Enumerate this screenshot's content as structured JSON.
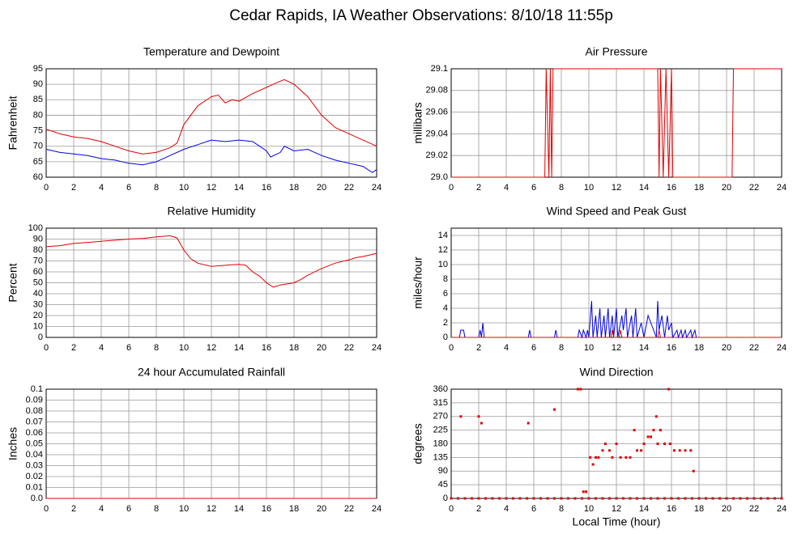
{
  "title": "Cedar Rapids, IA Weather Observations: 8/10/18 11:55p",
  "chart_data": [
    {
      "type": "line",
      "title": "Temperature and Dewpoint",
      "ylabel": "Fahrenheit",
      "xlim": [
        0,
        24
      ],
      "xticks": [
        0,
        2,
        4,
        6,
        8,
        10,
        12,
        14,
        16,
        18,
        20,
        22,
        24
      ],
      "ylim": [
        60,
        95
      ],
      "yticks": [
        60,
        65,
        70,
        75,
        80,
        85,
        90,
        95
      ],
      "grid": true,
      "series": [
        {
          "color": "#e00000",
          "x": [
            0,
            1,
            2,
            3,
            4,
            5,
            6,
            7,
            8,
            9,
            9.5,
            10,
            11,
            12,
            12.5,
            13,
            13.5,
            14,
            15,
            16,
            16.5,
            17,
            17.3,
            18,
            19,
            20,
            21,
            22,
            23,
            24
          ],
          "values": [
            75.5,
            74,
            73,
            72.5,
            71.5,
            70,
            68.5,
            67.5,
            68,
            69.5,
            71,
            77,
            83,
            86,
            86.5,
            84,
            85,
            84.5,
            87,
            89,
            90,
            91,
            91.5,
            90,
            86,
            80,
            76,
            74,
            72,
            70
          ]
        },
        {
          "color": "#0000e0",
          "x": [
            0,
            1,
            2,
            3,
            4,
            5,
            6,
            7,
            8,
            9,
            10,
            11,
            12,
            13,
            14,
            15,
            15.5,
            16,
            16.3,
            17,
            17.3,
            18,
            19,
            19.5,
            20,
            21,
            22,
            23,
            23.7,
            24
          ],
          "values": [
            69,
            68,
            67.5,
            67,
            66,
            65.5,
            64.5,
            64,
            65,
            67,
            69,
            70.5,
            72,
            71.5,
            72,
            71.5,
            70,
            68.5,
            66.5,
            68,
            70,
            68.5,
            69,
            68,
            67,
            65.5,
            64.5,
            63.5,
            61.5,
            62.5
          ]
        }
      ]
    },
    {
      "type": "line",
      "title": "Air Pressure",
      "ylabel": "millibars",
      "xlim": [
        0,
        24
      ],
      "xticks": [
        0,
        2,
        4,
        6,
        8,
        10,
        12,
        14,
        16,
        18,
        20,
        22,
        24
      ],
      "ylim": [
        29.0,
        29.1
      ],
      "yticks": [
        {
          "value": 29.0,
          "label": "29.0"
        },
        29.02,
        29.04,
        29.06,
        29.08,
        29.1
      ],
      "grid": true,
      "series": [
        {
          "color": "#e00000",
          "x": [
            0,
            6.8,
            6.9,
            7.1,
            7.2,
            7.3,
            7.4,
            15.0,
            15.1,
            15.2,
            15.4,
            15.6,
            15.8,
            16.0,
            16.1,
            20.4,
            20.5,
            24
          ],
          "values": [
            29.0,
            29.0,
            29.1,
            29.0,
            29.1,
            29.0,
            29.1,
            29.1,
            29.0,
            29.1,
            29.0,
            29.1,
            29.0,
            29.1,
            29.0,
            29.0,
            29.1,
            29.1
          ]
        }
      ]
    },
    {
      "type": "line",
      "title": "Relative Humidity",
      "ylabel": "Percent",
      "xlim": [
        0,
        24
      ],
      "xticks": [
        0,
        2,
        4,
        6,
        8,
        10,
        12,
        14,
        16,
        18,
        20,
        22,
        24
      ],
      "ylim": [
        0,
        100
      ],
      "yticks": [
        0,
        10,
        20,
        30,
        40,
        50,
        60,
        70,
        80,
        90,
        100
      ],
      "grid": true,
      "series": [
        {
          "color": "#e00000",
          "x": [
            0,
            1,
            2,
            3,
            4,
            5,
            6,
            7,
            8,
            9,
            9.5,
            10,
            10.5,
            11,
            12,
            13,
            14,
            14.5,
            15,
            15.5,
            16,
            16.5,
            17,
            18,
            18.5,
            19,
            20,
            21,
            22,
            22.5,
            23,
            24
          ],
          "values": [
            83,
            84,
            86,
            87,
            88,
            89,
            90,
            90.5,
            92,
            93,
            91,
            80,
            72,
            68,
            65,
            66,
            67,
            66,
            60,
            56,
            50,
            46,
            48,
            50,
            53,
            57,
            63,
            68,
            71,
            73,
            74,
            77
          ]
        }
      ]
    },
    {
      "type": "line",
      "title": "Wind Speed and Peak Gust",
      "ylabel": "miles/hour",
      "xlim": [
        0,
        24
      ],
      "xticks": [
        0,
        2,
        4,
        6,
        8,
        10,
        12,
        14,
        16,
        18,
        20,
        22,
        24
      ],
      "ylim": [
        0,
        15
      ],
      "yticks": [
        0,
        2,
        4,
        6,
        8,
        10,
        12,
        14
      ],
      "grid": true,
      "series": [
        {
          "color": "#0000e0",
          "x": [
            0,
            0.6,
            0.7,
            0.9,
            1.0,
            2.0,
            2.1,
            2.2,
            2.3,
            2.4,
            5.6,
            5.7,
            5.8,
            7.5,
            7.6,
            7.7,
            9.2,
            9.3,
            9.5,
            9.6,
            9.8,
            9.9,
            10,
            10.2,
            10.3,
            10.5,
            10.6,
            10.8,
            10.9,
            11.1,
            11.2,
            11.4,
            11.5,
            11.7,
            11.8,
            12.0,
            12.1,
            12.4,
            12.5,
            12.7,
            12.8,
            13.1,
            13.2,
            13.4,
            13.5,
            13.8,
            14,
            14.3,
            14.5,
            14.7,
            14.9,
            15.0,
            15.1,
            15.3,
            15.5,
            15.7,
            15.8,
            16.0,
            16.1,
            16.4,
            16.5,
            16.7,
            16.8,
            17.0,
            17.1,
            17.4,
            17.5,
            17.7,
            17.8,
            24
          ],
          "values": [
            0,
            0,
            1,
            1,
            0,
            0,
            1,
            0,
            2,
            0,
            0,
            1,
            0,
            0,
            1,
            0,
            0,
            1,
            0,
            1,
            0,
            1,
            0,
            5,
            0,
            3,
            0,
            4,
            0,
            3,
            0,
            4,
            0,
            3,
            0,
            4,
            0,
            3,
            1,
            4,
            0,
            3,
            0,
            4,
            0,
            2,
            0,
            3,
            2,
            1,
            0,
            5,
            1,
            3,
            0,
            3,
            1,
            2,
            0,
            1,
            0,
            1,
            0,
            1,
            0,
            1,
            0,
            1,
            0,
            0
          ]
        },
        {
          "color": "#e00000",
          "x": [
            0,
            11.6,
            11.7,
            11.8,
            12.2,
            12.3,
            12.4,
            15.0,
            15.1,
            15.2,
            24
          ],
          "values": [
            0,
            0,
            1,
            0,
            0,
            1,
            0,
            0,
            1,
            0,
            0
          ]
        }
      ]
    },
    {
      "type": "line",
      "title": "24 hour Accumulated Rainfall",
      "ylabel": "Inches",
      "xlim": [
        0,
        24
      ],
      "xticks": [
        0,
        2,
        4,
        6,
        8,
        10,
        12,
        14,
        16,
        18,
        20,
        22,
        24
      ],
      "ylim": [
        0,
        0.1
      ],
      "yticks": [
        {
          "value": 0,
          "label": "0.0"
        },
        0.01,
        0.02,
        0.03,
        0.04,
        0.05,
        0.06,
        0.07,
        0.08,
        0.09,
        0.1
      ],
      "grid": true,
      "series": [
        {
          "color": "#e00000",
          "x": [
            0,
            24
          ],
          "values": [
            0,
            0
          ]
        }
      ]
    },
    {
      "type": "scatter",
      "title": "Wind Direction",
      "ylabel": "degrees",
      "xlabel": "Local Time (hour)",
      "xlim": [
        0,
        24
      ],
      "xticks": [
        0,
        2,
        4,
        6,
        8,
        10,
        12,
        14,
        16,
        18,
        20,
        22,
        24
      ],
      "ylim": [
        0,
        360
      ],
      "yticks": [
        0,
        45,
        90,
        135,
        180,
        225,
        270,
        315,
        360
      ],
      "grid": true,
      "series": [
        {
          "color": "#e00000",
          "x": [
            0,
            0.5,
            1,
            1.5,
            2,
            2.5,
            3,
            3.5,
            4,
            4.5,
            5,
            5.5,
            6,
            6.5,
            7,
            7.5,
            8,
            8.5,
            9,
            9.5,
            10,
            10.5,
            11,
            11.5,
            12,
            12.5,
            13,
            13.5,
            14,
            14.5,
            15,
            15.5,
            16,
            16.5,
            17,
            17.5,
            18,
            18.5,
            19,
            19.5,
            20,
            20.5,
            21,
            21.5,
            22,
            22.5,
            23,
            23.5,
            24,
            0.7,
            2.0,
            2.2,
            5.6,
            7.5,
            9.2,
            9.4,
            9.6,
            9.8,
            10.1,
            10.3,
            10.5,
            10.7,
            11.0,
            11.2,
            11.5,
            11.7,
            12.0,
            12.3,
            12.7,
            13.0,
            13.3,
            13.5,
            13.8,
            14.0,
            14.3,
            14.5,
            14.7,
            14.9,
            15.0,
            15.2,
            15.5,
            15.8,
            15.9,
            16.2,
            16.6,
            17.0,
            17.4,
            17.6
          ],
          "values": [
            0,
            0,
            0,
            0,
            0,
            0,
            0,
            0,
            0,
            0,
            0,
            0,
            0,
            0,
            0,
            0,
            0,
            0,
            0,
            0,
            0,
            0,
            0,
            0,
            0,
            0,
            0,
            0,
            0,
            0,
            0,
            0,
            0,
            0,
            0,
            0,
            0,
            0,
            0,
            0,
            0,
            0,
            0,
            0,
            0,
            0,
            0,
            0,
            0,
            270,
            270,
            248,
            248,
            293,
            360,
            360,
            22,
            22,
            135,
            112,
            135,
            135,
            158,
            180,
            158,
            135,
            180,
            135,
            135,
            135,
            225,
            158,
            158,
            180,
            203,
            203,
            225,
            270,
            180,
            225,
            180,
            360,
            180,
            158,
            158,
            158,
            158,
            90
          ]
        }
      ]
    }
  ]
}
